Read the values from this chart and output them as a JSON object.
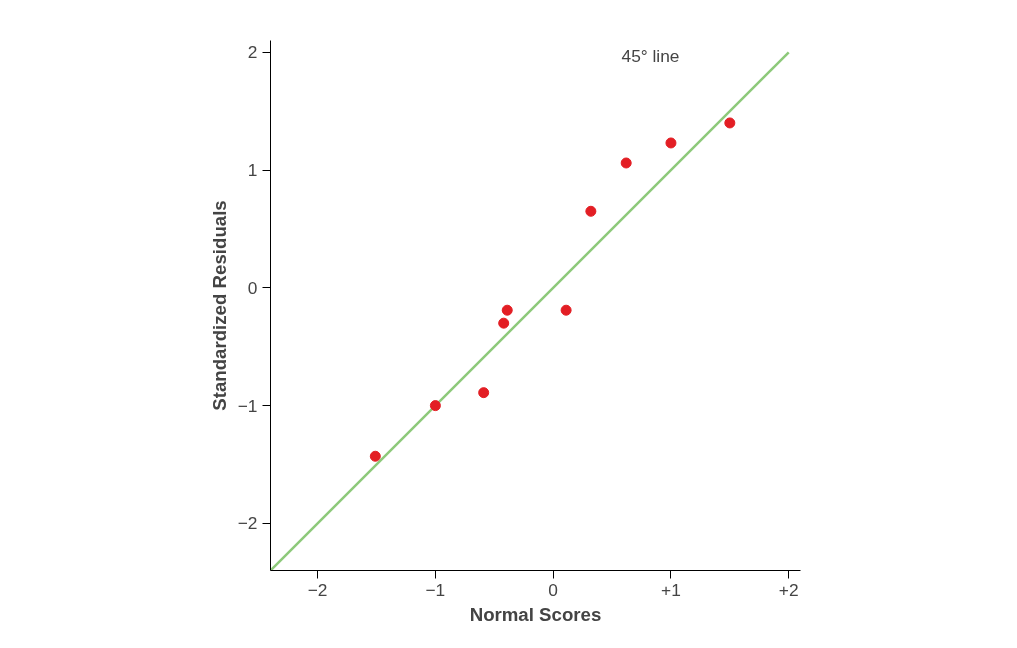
{
  "chart_data": {
    "type": "scatter",
    "xlabel": "Normal Scores",
    "ylabel": "Standardized Residuals",
    "xlim": [
      -2.4,
      2.1
    ],
    "ylim": [
      -2.4,
      2.1
    ],
    "xticks": [
      {
        "value": -2,
        "label": "−2"
      },
      {
        "value": -1,
        "label": "−1"
      },
      0,
      {
        "value": 1,
        "label": "+1"
      },
      {
        "value": 2,
        "label": "+2"
      }
    ],
    "yticks": [
      {
        "value": -2,
        "label": "−2"
      },
      {
        "value": -1,
        "label": "−1"
      },
      0,
      1,
      2
    ],
    "grid": false,
    "series": [
      {
        "type": "line",
        "color": "#8dc97a",
        "x": [
          -2.4,
          2
        ],
        "values": [
          -2.4,
          2
        ]
      },
      {
        "marker": "circle",
        "color": "#e31e24",
        "x": [
          -1.51,
          -1.0,
          -0.59,
          -0.42,
          -0.39,
          0.11,
          0.32,
          0.62,
          1.0,
          1.5
        ],
        "values": [
          -1.43,
          -1.0,
          -0.89,
          -0.3,
          -0.19,
          -0.19,
          0.65,
          1.06,
          1.23,
          1.4
        ]
      }
    ],
    "annotations": [
      "45° line"
    ]
  }
}
